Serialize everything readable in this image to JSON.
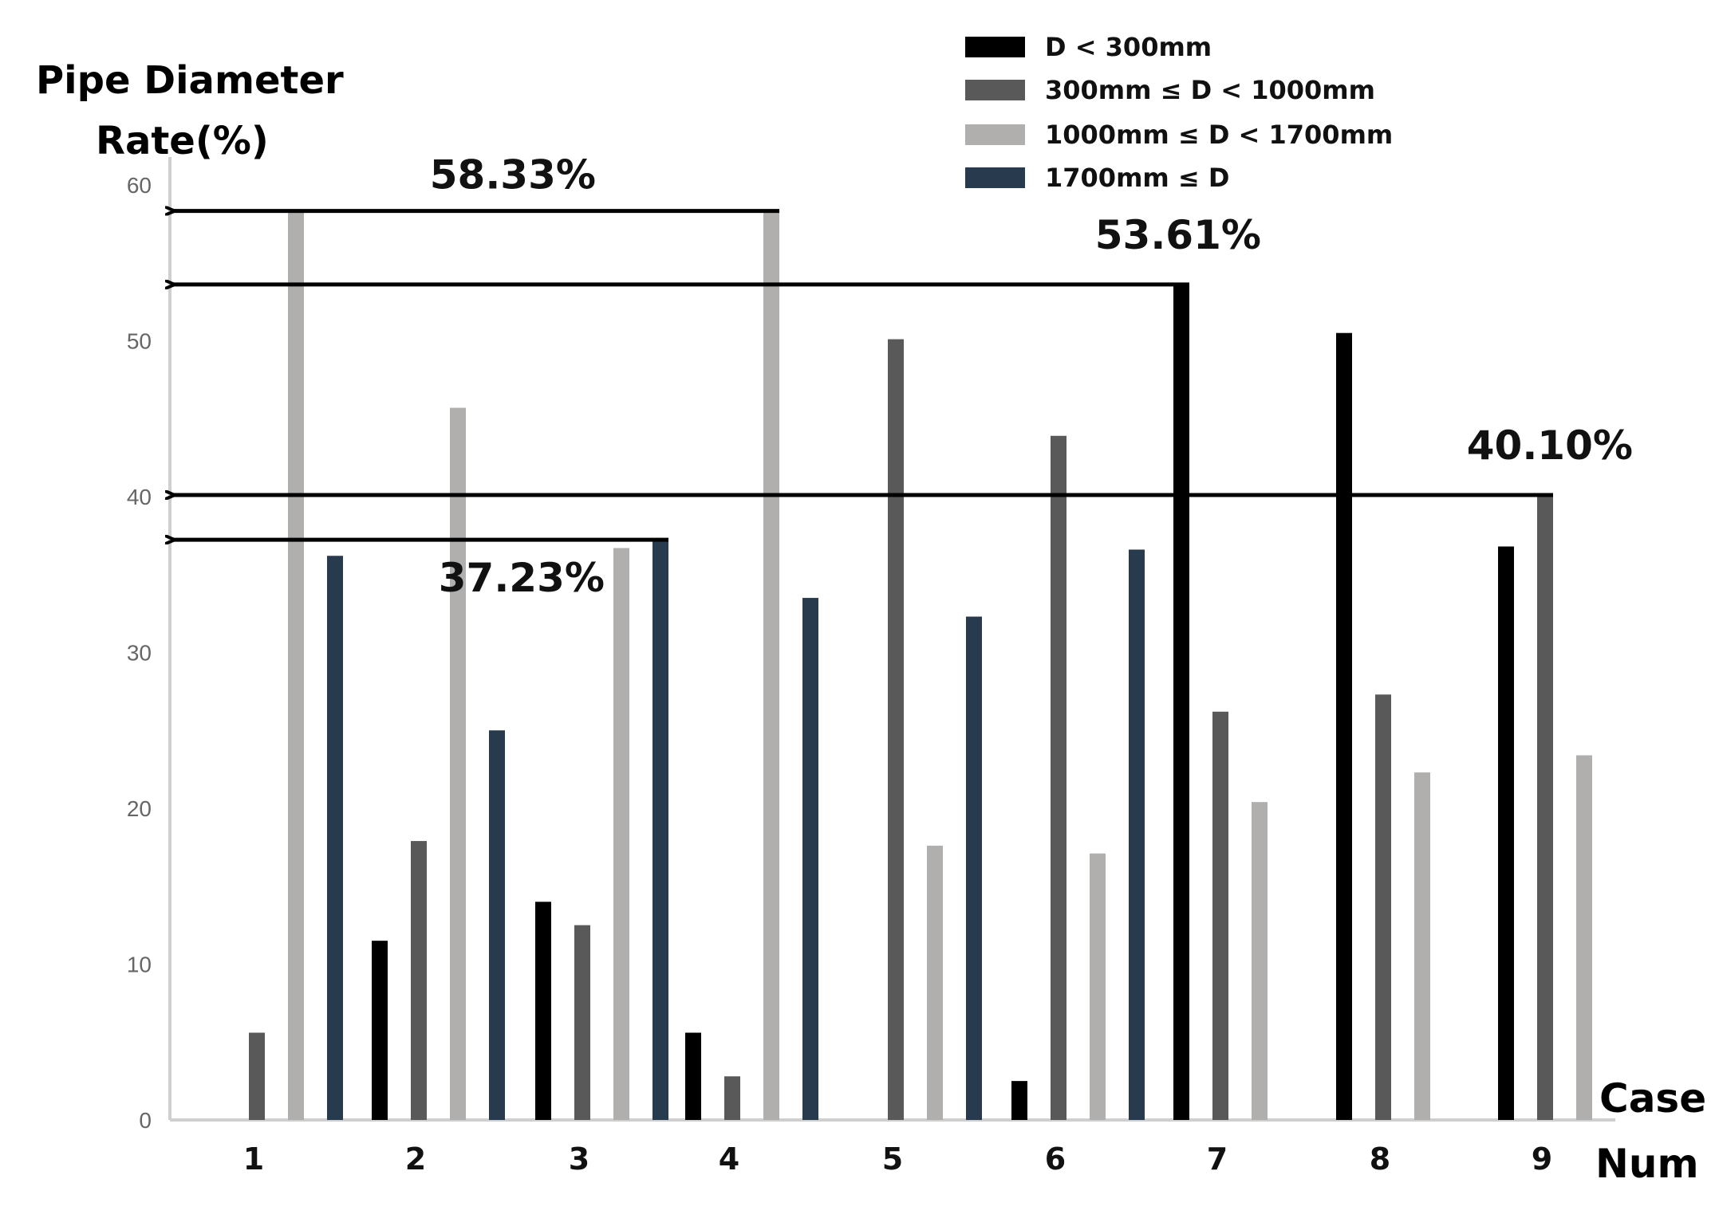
{
  "chart_data": {
    "type": "bar",
    "title": "",
    "ylabel_line1": "Pipe Diameter",
    "ylabel_line2": "Rate(%)",
    "xlabel_line1": "Case",
    "xlabel_line2": "Num",
    "ylim": [
      0,
      60
    ],
    "yticks": [
      "0",
      "10",
      "20",
      "30",
      "40",
      "50",
      "60"
    ],
    "categories": [
      "1",
      "2",
      "3",
      "4",
      "5",
      "6",
      "7",
      "8",
      "9"
    ],
    "legend_position": "top-right",
    "series": [
      {
        "name": "D < 300mm",
        "color": "#000000",
        "values": [
          0,
          11.5,
          14,
          5.6,
          0,
          2.5,
          53.61,
          50.5,
          36.8
        ]
      },
      {
        "name": "300mm ≤  D < 1000mm",
        "color": "#595959",
        "values": [
          5.6,
          17.9,
          12.5,
          2.8,
          50.1,
          43.9,
          26.2,
          27.3,
          40.1
        ]
      },
      {
        "name": "1000mm ≤ D < 1700mm",
        "color": "#b0afae",
        "values": [
          58.33,
          45.7,
          36.7,
          58.33,
          17.6,
          17.1,
          20.4,
          22.3,
          23.4
        ]
      },
      {
        "name": "1700mm ≤ D",
        "color": "#283a4d",
        "values": [
          36.2,
          25.0,
          37.23,
          33.5,
          32.3,
          36.6,
          0,
          0,
          0
        ]
      }
    ],
    "annotations": [
      {
        "text": "58.33%",
        "value": 58.33,
        "case": "4",
        "series": 2
      },
      {
        "text": "53.61%",
        "value": 53.61,
        "case": "7",
        "series": 0
      },
      {
        "text": "40.10%",
        "value": 40.1,
        "case": "9",
        "series": 1
      },
      {
        "text": "37.23%",
        "value": 37.23,
        "case": "3",
        "series": 3
      }
    ]
  }
}
